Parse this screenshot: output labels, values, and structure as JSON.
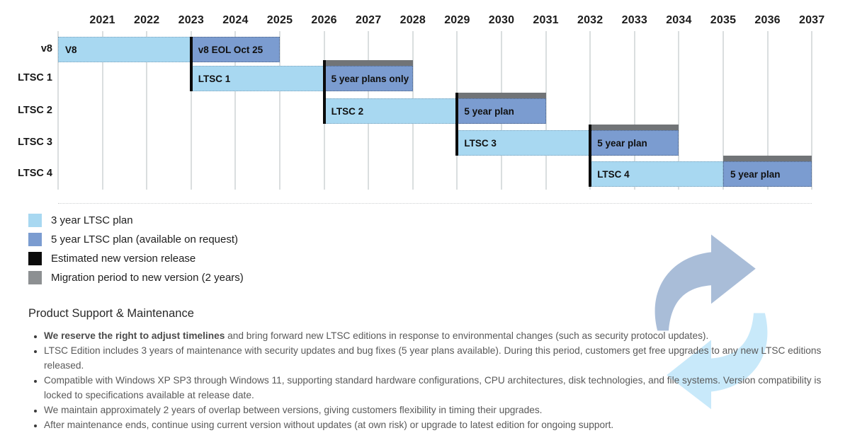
{
  "chart_data": {
    "type": "gantt",
    "title": "Product version support timeline",
    "x_axis": {
      "start": 2020,
      "end": 2037,
      "ticks": [
        2021,
        2022,
        2023,
        2024,
        2025,
        2026,
        2027,
        2028,
        2029,
        2030,
        2031,
        2032,
        2033,
        2034,
        2035,
        2036,
        2037
      ]
    },
    "rows": [
      {
        "label": "v8",
        "bars": [
          {
            "kind": "plan3",
            "start": 2020,
            "end": 2023,
            "label": "V8",
            "migration": false
          },
          {
            "kind": "plan5",
            "start": 2023,
            "end": 2025,
            "label": "v8 EOL Oct 25",
            "migration": false
          }
        ]
      },
      {
        "label": "LTSC 1",
        "bars": [
          {
            "kind": "plan3",
            "start": 2023,
            "end": 2026,
            "label": "LTSC 1",
            "migration": false
          },
          {
            "kind": "plan5",
            "start": 2026,
            "end": 2028,
            "label": "5 year plans only",
            "migration": true
          }
        ]
      },
      {
        "label": "LTSC 2",
        "bars": [
          {
            "kind": "plan3",
            "start": 2026,
            "end": 2029,
            "label": "LTSC 2",
            "migration": false
          },
          {
            "kind": "plan5",
            "start": 2029,
            "end": 2031,
            "label": "5 year plan",
            "migration": true
          }
        ]
      },
      {
        "label": "LTSC 3",
        "bars": [
          {
            "kind": "plan3",
            "start": 2029,
            "end": 2032,
            "label": "LTSC 3",
            "migration": false
          },
          {
            "kind": "plan5",
            "start": 2032,
            "end": 2034,
            "label": "5 year plan",
            "migration": true
          }
        ]
      },
      {
        "label": "LTSC 4",
        "bars": [
          {
            "kind": "plan3",
            "start": 2032,
            "end": 2035,
            "label": "LTSC 4",
            "migration": false
          },
          {
            "kind": "plan5",
            "start": 2035,
            "end": 2037,
            "label": "5 year plan",
            "migration": true
          }
        ]
      }
    ],
    "release_lines": [
      {
        "year": 2023,
        "from_row": 0,
        "to_row": 1
      },
      {
        "year": 2026,
        "from_row": 1,
        "to_row": 2
      },
      {
        "year": 2029,
        "from_row": 2,
        "to_row": 3
      },
      {
        "year": 2032,
        "from_row": 3,
        "to_row": 4
      }
    ],
    "legend": [
      {
        "key": "plan3",
        "color": "#a8d8f1",
        "label": "3 year LTSC plan"
      },
      {
        "key": "plan5",
        "color": "#7b9cd0",
        "label": "5 year LTSC plan (available on request)"
      },
      {
        "key": "release",
        "color": "#0b0b0b",
        "label": "Estimated new version release"
      },
      {
        "key": "migration",
        "color": "#8d9092",
        "label": "Migration period to new version (2 years)"
      }
    ],
    "legend_position": "bottom-left",
    "grid": true
  },
  "colors": {
    "plan3_bar": "#a8d8f1",
    "plan5_bar": "#7b9cd0",
    "migration_bar": "#717477",
    "release_line": "#0b0b0b",
    "arrow_dark": "#a9bdd8",
    "arrow_light": "#c8e9fa"
  },
  "notes": {
    "heading": "Product Support & Maintenance",
    "bullets": [
      {
        "bold": "We reserve the right to adjust timelines",
        "text": " and bring forward new LTSC editions in response to environmental changes (such as security protocol updates)."
      },
      {
        "bold": "",
        "text": "LTSC Edition includes 3 years of maintenance with security updates and bug fixes (5 year plans available). During this period, customers get free upgrades to any new LTSC editions released."
      },
      {
        "bold": "",
        "text": "Compatible with Windows XP SP3 through Windows 11, supporting standard hardware configurations, CPU architectures, disk technologies, and file systems. Version compatibility is locked to specifications available at release date."
      },
      {
        "bold": "",
        "text": "We maintain approximately 2 years of overlap between versions, giving customers flexibility in timing their upgrades."
      },
      {
        "bold": "",
        "text": "After maintenance ends, continue using current version without updates (at own risk) or upgrade to latest edition for ongoing support."
      }
    ]
  }
}
